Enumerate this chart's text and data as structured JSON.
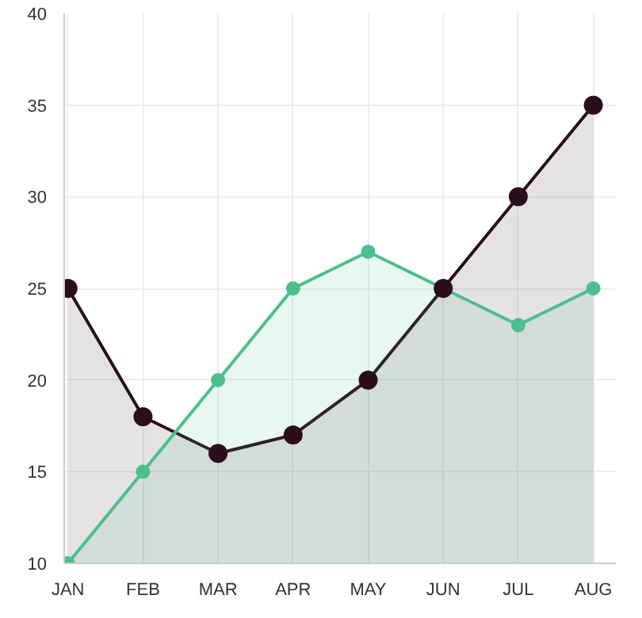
{
  "chart_data": {
    "type": "area",
    "categories": [
      "JAN",
      "FEB",
      "MAR",
      "APR",
      "MAY",
      "JUN",
      "JUL",
      "AUG"
    ],
    "series": [
      {
        "color": "#2b0d1e",
        "values": [
          25,
          18,
          16,
          17,
          20,
          25,
          30,
          35
        ]
      },
      {
        "color": "#4cbf8a",
        "values": [
          10,
          15,
          20,
          25,
          27,
          25,
          23,
          25
        ]
      }
    ],
    "ylim": [
      10,
      40
    ],
    "yticks": [
      10,
      15,
      20,
      25,
      30,
      35,
      40
    ],
    "grid": true,
    "marker": "circle",
    "line_style": "solid"
  }
}
